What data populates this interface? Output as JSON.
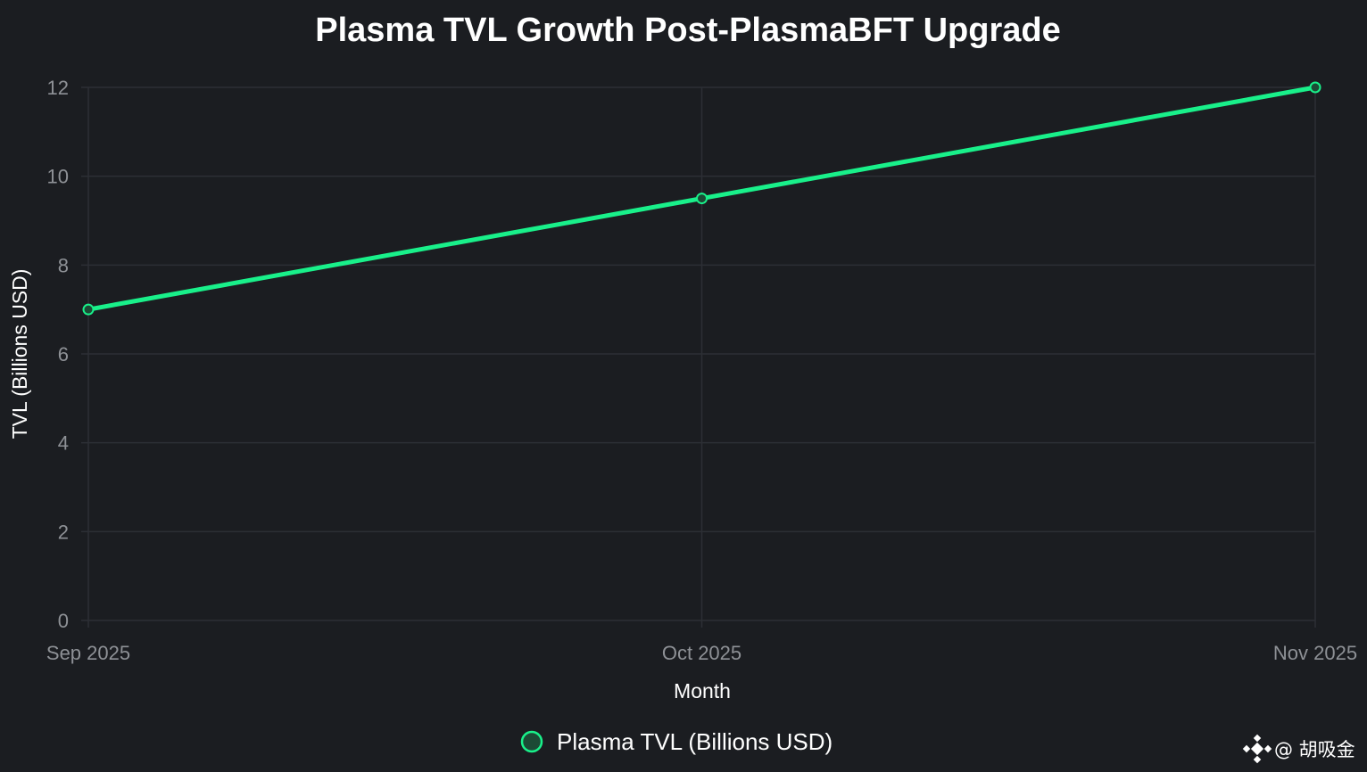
{
  "chart_data": {
    "type": "line",
    "title": "Plasma TVL Growth Post-PlasmaBFT Upgrade",
    "xlabel": "Month",
    "ylabel": "TVL (Billions USD)",
    "categories": [
      "Sep 2025",
      "Oct 2025",
      "Nov 2025"
    ],
    "series": [
      {
        "name": "Plasma TVL (Billions USD)",
        "values": [
          7,
          9.5,
          12
        ],
        "color": "#19f08a"
      }
    ],
    "ylim": [
      0,
      12
    ],
    "yticks": [
      "0",
      "2",
      "4",
      "6",
      "8",
      "10",
      "12"
    ],
    "grid": true,
    "legend_position": "bottom-center"
  },
  "watermark": {
    "text": "@ 胡吸金",
    "icon": "binance-diamond-icon"
  },
  "colors": {
    "background": "#1b1d21",
    "line": "#19f08a",
    "legend_marker_fill": "#1c4a35",
    "grid": "#2c2f35",
    "tick_text": "#8e9196",
    "text": "#ffffff"
  }
}
